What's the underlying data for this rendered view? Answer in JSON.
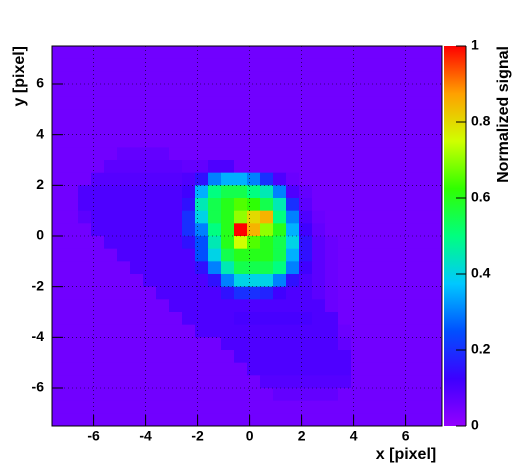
{
  "chart_data": {
    "type": "heatmap",
    "x_label": "x [pixel]",
    "y_label": "y [pixel]",
    "z_label": "Normalized signal",
    "xlim": [
      -7.6,
      7.4
    ],
    "ylim": [
      -7.5,
      7.5
    ],
    "zlim": [
      0,
      1
    ],
    "xticks": [
      -6,
      -4,
      -2,
      0,
      2,
      4,
      6
    ],
    "yticks": [
      -6,
      -4,
      -2,
      0,
      2,
      4,
      6
    ],
    "zticks": [
      0,
      0.2,
      0.4,
      0.6,
      0.8,
      1
    ],
    "grid": true,
    "colormap": [
      "#9400ff",
      "#3c00ff",
      "#0050ff",
      "#00c8ff",
      "#00ff80",
      "#30ff00",
      "#d0ff00",
      "#ffa000",
      "#ff0000"
    ],
    "x": [
      -7.35,
      -6.85,
      -6.35,
      -5.85,
      -5.35,
      -4.85,
      -4.35,
      -3.85,
      -3.35,
      -2.85,
      -2.35,
      -1.85,
      -1.35,
      -0.85,
      -0.35,
      0.15,
      0.65,
      1.15,
      1.65,
      2.15,
      2.65,
      3.15,
      3.65,
      4.15,
      4.65,
      5.15,
      5.65,
      6.15,
      6.65,
      7.15
    ],
    "y": [
      7.25,
      6.75,
      6.25,
      5.75,
      5.25,
      4.75,
      4.25,
      3.75,
      3.25,
      2.75,
      2.25,
      1.75,
      1.25,
      0.75,
      0.25,
      -0.25,
      -0.75,
      -1.25,
      -1.75,
      -2.25,
      -2.75,
      -3.25,
      -3.75,
      -4.25,
      -4.75,
      -5.25,
      -5.75,
      -6.25,
      -6.75,
      -7.25
    ],
    "z": [
      [
        0.05,
        0.05,
        0.05,
        0.05,
        0.05,
        0.05,
        0.05,
        0.05,
        0.05,
        0.05,
        0.05,
        0.05,
        0.05,
        0.05,
        0.05,
        0.05,
        0.05,
        0.05,
        0.05,
        0.05,
        0.05,
        0.05,
        0.05,
        0.05,
        0.05,
        0.05,
        0.05,
        0.05,
        0.05,
        0.05
      ],
      [
        0.05,
        0.05,
        0.05,
        0.05,
        0.05,
        0.05,
        0.05,
        0.05,
        0.05,
        0.05,
        0.05,
        0.05,
        0.05,
        0.05,
        0.05,
        0.05,
        0.05,
        0.05,
        0.05,
        0.05,
        0.05,
        0.05,
        0.05,
        0.05,
        0.05,
        0.05,
        0.05,
        0.05,
        0.05,
        0.05
      ],
      [
        0.05,
        0.05,
        0.05,
        0.05,
        0.05,
        0.05,
        0.05,
        0.05,
        0.05,
        0.05,
        0.05,
        0.05,
        0.05,
        0.05,
        0.05,
        0.05,
        0.05,
        0.05,
        0.05,
        0.05,
        0.05,
        0.05,
        0.05,
        0.05,
        0.05,
        0.05,
        0.05,
        0.05,
        0.05,
        0.05
      ],
      [
        0.05,
        0.05,
        0.05,
        0.05,
        0.05,
        0.05,
        0.05,
        0.05,
        0.05,
        0.05,
        0.05,
        0.05,
        0.05,
        0.05,
        0.05,
        0.05,
        0.05,
        0.05,
        0.05,
        0.05,
        0.05,
        0.05,
        0.05,
        0.05,
        0.05,
        0.05,
        0.05,
        0.05,
        0.05,
        0.05
      ],
      [
        0.05,
        0.05,
        0.05,
        0.05,
        0.05,
        0.05,
        0.05,
        0.05,
        0.05,
        0.05,
        0.05,
        0.05,
        0.05,
        0.05,
        0.05,
        0.05,
        0.05,
        0.05,
        0.05,
        0.05,
        0.05,
        0.05,
        0.05,
        0.05,
        0.05,
        0.05,
        0.05,
        0.05,
        0.05,
        0.05
      ],
      [
        0.05,
        0.05,
        0.05,
        0.05,
        0.05,
        0.05,
        0.05,
        0.05,
        0.05,
        0.05,
        0.05,
        0.05,
        0.05,
        0.05,
        0.05,
        0.05,
        0.05,
        0.05,
        0.05,
        0.05,
        0.05,
        0.05,
        0.05,
        0.05,
        0.05,
        0.05,
        0.05,
        0.05,
        0.05,
        0.05
      ],
      [
        0.05,
        0.05,
        0.05,
        0.05,
        0.05,
        0.05,
        0.05,
        0.05,
        0.05,
        0.05,
        0.05,
        0.05,
        0.05,
        0.05,
        0.05,
        0.05,
        0.05,
        0.05,
        0.05,
        0.05,
        0.05,
        0.05,
        0.05,
        0.05,
        0.05,
        0.05,
        0.05,
        0.05,
        0.05,
        0.05
      ],
      [
        0.05,
        0.05,
        0.05,
        0.05,
        0.05,
        0.05,
        0.05,
        0.05,
        0.05,
        0.05,
        0.05,
        0.05,
        0.05,
        0.05,
        0.05,
        0.05,
        0.05,
        0.05,
        0.05,
        0.05,
        0.05,
        0.05,
        0.05,
        0.05,
        0.05,
        0.05,
        0.05,
        0.05,
        0.05,
        0.05
      ],
      [
        0.05,
        0.05,
        0.05,
        0.05,
        0.05,
        0.07,
        0.07,
        0.07,
        0.07,
        0.05,
        0.05,
        0.05,
        0.05,
        0.05,
        0.05,
        0.05,
        0.05,
        0.05,
        0.05,
        0.05,
        0.05,
        0.05,
        0.05,
        0.05,
        0.05,
        0.05,
        0.05,
        0.05,
        0.05,
        0.05
      ],
      [
        0.05,
        0.05,
        0.05,
        0.05,
        0.08,
        0.08,
        0.08,
        0.08,
        0.08,
        0.08,
        0.07,
        0.07,
        0.1,
        0.1,
        0.05,
        0.05,
        0.05,
        0.05,
        0.05,
        0.05,
        0.05,
        0.05,
        0.05,
        0.05,
        0.05,
        0.05,
        0.05,
        0.05,
        0.05,
        0.05
      ],
      [
        0.05,
        0.05,
        0.05,
        0.09,
        0.09,
        0.09,
        0.09,
        0.09,
        0.09,
        0.09,
        0.1,
        0.15,
        0.3,
        0.35,
        0.35,
        0.3,
        0.2,
        0.1,
        0.06,
        0.05,
        0.05,
        0.05,
        0.05,
        0.05,
        0.05,
        0.05,
        0.05,
        0.05,
        0.05,
        0.05
      ],
      [
        0.05,
        0.05,
        0.1,
        0.1,
        0.1,
        0.1,
        0.1,
        0.1,
        0.1,
        0.1,
        0.12,
        0.35,
        0.5,
        0.55,
        0.55,
        0.5,
        0.45,
        0.3,
        0.1,
        0.07,
        0.05,
        0.05,
        0.05,
        0.05,
        0.05,
        0.05,
        0.05,
        0.05,
        0.05,
        0.05
      ],
      [
        0.05,
        0.05,
        0.1,
        0.1,
        0.1,
        0.1,
        0.1,
        0.1,
        0.1,
        0.1,
        0.15,
        0.45,
        0.55,
        0.6,
        0.65,
        0.62,
        0.55,
        0.45,
        0.2,
        0.08,
        0.05,
        0.05,
        0.05,
        0.05,
        0.05,
        0.05,
        0.05,
        0.05,
        0.05,
        0.05
      ],
      [
        0.05,
        0.05,
        0.08,
        0.1,
        0.1,
        0.1,
        0.1,
        0.1,
        0.1,
        0.1,
        0.2,
        0.4,
        0.55,
        0.6,
        0.7,
        0.8,
        0.85,
        0.5,
        0.3,
        0.1,
        0.06,
        0.05,
        0.05,
        0.05,
        0.05,
        0.05,
        0.05,
        0.05,
        0.05,
        0.05
      ],
      [
        0.05,
        0.05,
        0.05,
        0.1,
        0.1,
        0.1,
        0.1,
        0.1,
        0.1,
        0.1,
        0.2,
        0.3,
        0.5,
        0.6,
        1,
        0.85,
        0.7,
        0.6,
        0.35,
        0.12,
        0.07,
        0.05,
        0.05,
        0.05,
        0.05,
        0.05,
        0.05,
        0.05,
        0.05,
        0.05
      ],
      [
        0.05,
        0.05,
        0.05,
        0.05,
        0.1,
        0.1,
        0.1,
        0.1,
        0.1,
        0.1,
        0.15,
        0.25,
        0.45,
        0.6,
        0.75,
        0.65,
        0.6,
        0.55,
        0.4,
        0.15,
        0.08,
        0.06,
        0.05,
        0.05,
        0.05,
        0.05,
        0.05,
        0.05,
        0.05,
        0.05
      ],
      [
        0.05,
        0.05,
        0.05,
        0.05,
        0.05,
        0.1,
        0.1,
        0.1,
        0.1,
        0.1,
        0.1,
        0.25,
        0.4,
        0.55,
        0.6,
        0.6,
        0.6,
        0.55,
        0.35,
        0.15,
        0.08,
        0.06,
        0.05,
        0.05,
        0.05,
        0.05,
        0.05,
        0.05,
        0.05,
        0.05
      ],
      [
        0.05,
        0.05,
        0.05,
        0.05,
        0.05,
        0.05,
        0.1,
        0.1,
        0.1,
        0.1,
        0.1,
        0.15,
        0.3,
        0.45,
        0.55,
        0.55,
        0.55,
        0.5,
        0.3,
        0.12,
        0.08,
        0.06,
        0.05,
        0.05,
        0.05,
        0.05,
        0.05,
        0.05,
        0.05,
        0.05
      ],
      [
        0.05,
        0.05,
        0.05,
        0.05,
        0.05,
        0.05,
        0.05,
        0.1,
        0.1,
        0.1,
        0.1,
        0.1,
        0.15,
        0.3,
        0.4,
        0.4,
        0.4,
        0.3,
        0.15,
        0.1,
        0.08,
        0.06,
        0.05,
        0.05,
        0.05,
        0.05,
        0.05,
        0.05,
        0.05,
        0.05
      ],
      [
        0.05,
        0.05,
        0.05,
        0.05,
        0.05,
        0.05,
        0.05,
        0.05,
        0.1,
        0.1,
        0.1,
        0.1,
        0.1,
        0.15,
        0.2,
        0.2,
        0.18,
        0.12,
        0.1,
        0.1,
        0.08,
        0.06,
        0.05,
        0.05,
        0.05,
        0.05,
        0.05,
        0.05,
        0.05,
        0.05
      ],
      [
        0.05,
        0.05,
        0.05,
        0.05,
        0.05,
        0.05,
        0.05,
        0.05,
        0.05,
        0.1,
        0.1,
        0.1,
        0.1,
        0.1,
        0.1,
        0.1,
        0.1,
        0.1,
        0.1,
        0.1,
        0.1,
        0.06,
        0.05,
        0.05,
        0.05,
        0.05,
        0.05,
        0.05,
        0.05,
        0.05
      ],
      [
        0.05,
        0.05,
        0.05,
        0.05,
        0.05,
        0.05,
        0.05,
        0.05,
        0.05,
        0.05,
        0.1,
        0.1,
        0.1,
        0.1,
        0.11,
        0.11,
        0.11,
        0.11,
        0.11,
        0.11,
        0.1,
        0.1,
        0.05,
        0.05,
        0.05,
        0.05,
        0.05,
        0.05,
        0.05,
        0.05
      ],
      [
        0.05,
        0.05,
        0.05,
        0.05,
        0.05,
        0.05,
        0.05,
        0.05,
        0.05,
        0.05,
        0.05,
        0.1,
        0.1,
        0.1,
        0.1,
        0.1,
        0.1,
        0.1,
        0.1,
        0.1,
        0.1,
        0.1,
        0.06,
        0.05,
        0.05,
        0.05,
        0.05,
        0.05,
        0.05,
        0.05
      ],
      [
        0.05,
        0.05,
        0.05,
        0.05,
        0.05,
        0.05,
        0.05,
        0.05,
        0.05,
        0.05,
        0.05,
        0.05,
        0.05,
        0.1,
        0.1,
        0.1,
        0.1,
        0.1,
        0.1,
        0.1,
        0.1,
        0.1,
        0.07,
        0.05,
        0.05,
        0.05,
        0.05,
        0.05,
        0.05,
        0.05
      ],
      [
        0.05,
        0.05,
        0.05,
        0.05,
        0.05,
        0.05,
        0.05,
        0.05,
        0.05,
        0.05,
        0.05,
        0.05,
        0.05,
        0.05,
        0.1,
        0.1,
        0.1,
        0.1,
        0.1,
        0.1,
        0.1,
        0.1,
        0.1,
        0.05,
        0.05,
        0.05,
        0.05,
        0.05,
        0.05,
        0.05
      ],
      [
        0.05,
        0.05,
        0.05,
        0.05,
        0.05,
        0.05,
        0.05,
        0.05,
        0.05,
        0.05,
        0.05,
        0.05,
        0.05,
        0.05,
        0.05,
        0.1,
        0.1,
        0.1,
        0.1,
        0.1,
        0.1,
        0.1,
        0.1,
        0.05,
        0.05,
        0.05,
        0.05,
        0.05,
        0.05,
        0.05
      ],
      [
        0.05,
        0.05,
        0.05,
        0.05,
        0.05,
        0.05,
        0.05,
        0.05,
        0.05,
        0.05,
        0.05,
        0.05,
        0.05,
        0.05,
        0.05,
        0.05,
        0.09,
        0.09,
        0.09,
        0.09,
        0.09,
        0.09,
        0.09,
        0.05,
        0.05,
        0.05,
        0.05,
        0.05,
        0.05,
        0.05
      ],
      [
        0.05,
        0.05,
        0.05,
        0.05,
        0.05,
        0.05,
        0.05,
        0.05,
        0.05,
        0.05,
        0.05,
        0.05,
        0.05,
        0.05,
        0.05,
        0.05,
        0.05,
        0.07,
        0.07,
        0.07,
        0.07,
        0.07,
        0.05,
        0.05,
        0.05,
        0.05,
        0.05,
        0.05,
        0.05,
        0.05
      ],
      [
        0.05,
        0.05,
        0.05,
        0.05,
        0.05,
        0.05,
        0.05,
        0.05,
        0.05,
        0.05,
        0.05,
        0.05,
        0.05,
        0.05,
        0.05,
        0.05,
        0.05,
        0.05,
        0.05,
        0.05,
        0.05,
        0.05,
        0.05,
        0.05,
        0.05,
        0.05,
        0.05,
        0.05,
        0.05,
        0.05
      ],
      [
        0.05,
        0.05,
        0.05,
        0.05,
        0.05,
        0.05,
        0.05,
        0.05,
        0.05,
        0.05,
        0.05,
        0.05,
        0.05,
        0.05,
        0.05,
        0.05,
        0.05,
        0.05,
        0.05,
        0.05,
        0.05,
        0.05,
        0.05,
        0.05,
        0.05,
        0.05,
        0.05,
        0.05,
        0.05,
        0.05
      ]
    ]
  }
}
